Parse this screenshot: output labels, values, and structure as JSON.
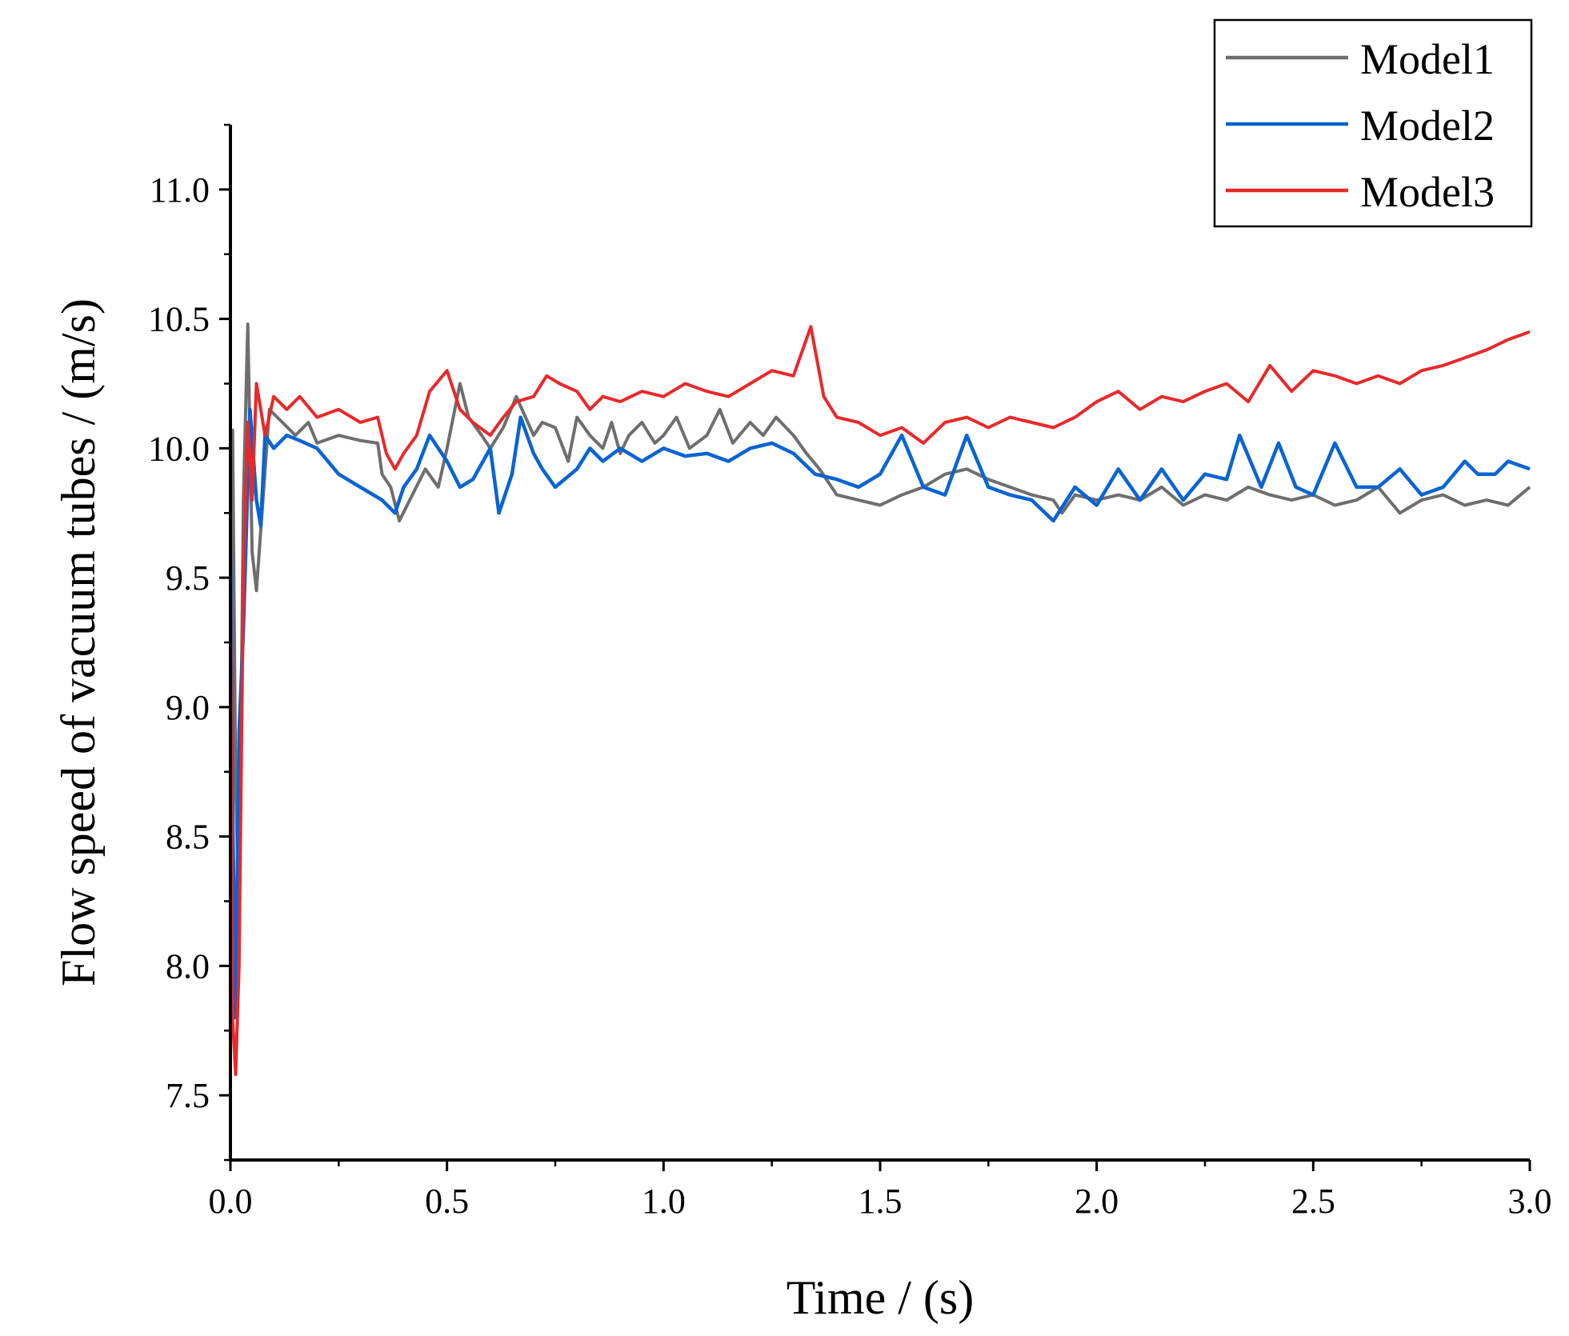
{
  "chart_data": {
    "type": "line",
    "title": "",
    "xlabel": "Time / (s)",
    "ylabel": "Flow speed of vacuum tubes / (m/s)",
    "xlim": [
      0.0,
      3.0
    ],
    "ylim": [
      7.25,
      11.25
    ],
    "xticks": [
      0.0,
      0.5,
      1.0,
      1.5,
      2.0,
      2.5,
      3.0
    ],
    "xtick_labels": [
      "0.0",
      "0.5",
      "1.0",
      "1.5",
      "2.0",
      "2.5",
      "3.0"
    ],
    "yticks": [
      7.5,
      8.0,
      8.5,
      9.0,
      9.5,
      10.0,
      10.5,
      11.0
    ],
    "ytick_labels": [
      "7.5",
      "8.0",
      "8.5",
      "9.0",
      "9.5",
      "10.0",
      "10.5",
      "11.0"
    ],
    "grid": false,
    "legend_position": "top-right",
    "series": [
      {
        "name": "Model1",
        "color": "#6e6e6e",
        "points": [
          [
            0.0,
            9.6
          ],
          [
            0.005,
            10.07
          ],
          [
            0.012,
            8.7
          ],
          [
            0.02,
            8.2
          ],
          [
            0.03,
            9.8
          ],
          [
            0.04,
            10.48
          ],
          [
            0.05,
            9.6
          ],
          [
            0.06,
            9.45
          ],
          [
            0.075,
            9.8
          ],
          [
            0.09,
            10.15
          ],
          [
            0.12,
            10.1
          ],
          [
            0.15,
            10.05
          ],
          [
            0.18,
            10.1
          ],
          [
            0.2,
            10.02
          ],
          [
            0.25,
            10.05
          ],
          [
            0.3,
            10.03
          ],
          [
            0.34,
            10.02
          ],
          [
            0.35,
            9.9
          ],
          [
            0.37,
            9.85
          ],
          [
            0.39,
            9.72
          ],
          [
            0.42,
            9.82
          ],
          [
            0.45,
            9.92
          ],
          [
            0.48,
            9.85
          ],
          [
            0.5,
            10.0
          ],
          [
            0.53,
            10.25
          ],
          [
            0.55,
            10.12
          ],
          [
            0.58,
            10.05
          ],
          [
            0.6,
            10.0
          ],
          [
            0.63,
            10.08
          ],
          [
            0.66,
            10.2
          ],
          [
            0.7,
            10.05
          ],
          [
            0.72,
            10.1
          ],
          [
            0.75,
            10.08
          ],
          [
            0.78,
            9.95
          ],
          [
            0.8,
            10.12
          ],
          [
            0.83,
            10.05
          ],
          [
            0.86,
            10.0
          ],
          [
            0.88,
            10.1
          ],
          [
            0.9,
            9.98
          ],
          [
            0.92,
            10.05
          ],
          [
            0.95,
            10.1
          ],
          [
            0.98,
            10.02
          ],
          [
            1.0,
            10.05
          ],
          [
            1.03,
            10.12
          ],
          [
            1.06,
            10.0
          ],
          [
            1.1,
            10.05
          ],
          [
            1.13,
            10.15
          ],
          [
            1.16,
            10.02
          ],
          [
            1.2,
            10.1
          ],
          [
            1.23,
            10.05
          ],
          [
            1.26,
            10.12
          ],
          [
            1.3,
            10.05
          ],
          [
            1.33,
            9.98
          ],
          [
            1.36,
            9.92
          ],
          [
            1.4,
            9.82
          ],
          [
            1.45,
            9.8
          ],
          [
            1.5,
            9.78
          ],
          [
            1.55,
            9.82
          ],
          [
            1.6,
            9.85
          ],
          [
            1.65,
            9.9
          ],
          [
            1.7,
            9.92
          ],
          [
            1.75,
            9.88
          ],
          [
            1.8,
            9.85
          ],
          [
            1.85,
            9.82
          ],
          [
            1.9,
            9.8
          ],
          [
            1.92,
            9.75
          ],
          [
            1.95,
            9.82
          ],
          [
            2.0,
            9.8
          ],
          [
            2.05,
            9.82
          ],
          [
            2.1,
            9.8
          ],
          [
            2.15,
            9.85
          ],
          [
            2.2,
            9.78
          ],
          [
            2.25,
            9.82
          ],
          [
            2.3,
            9.8
          ],
          [
            2.35,
            9.85
          ],
          [
            2.4,
            9.82
          ],
          [
            2.45,
            9.8
          ],
          [
            2.5,
            9.82
          ],
          [
            2.55,
            9.78
          ],
          [
            2.6,
            9.8
          ],
          [
            2.65,
            9.85
          ],
          [
            2.7,
            9.75
          ],
          [
            2.75,
            9.8
          ],
          [
            2.8,
            9.82
          ],
          [
            2.85,
            9.78
          ],
          [
            2.9,
            9.8
          ],
          [
            2.95,
            9.78
          ],
          [
            3.0,
            9.85
          ]
        ]
      },
      {
        "name": "Model2",
        "color": "#0a64d2",
        "points": [
          [
            0.0,
            9.6
          ],
          [
            0.005,
            8.6
          ],
          [
            0.012,
            7.8
          ],
          [
            0.02,
            8.9
          ],
          [
            0.03,
            9.3
          ],
          [
            0.045,
            10.15
          ],
          [
            0.06,
            9.8
          ],
          [
            0.07,
            9.7
          ],
          [
            0.08,
            10.05
          ],
          [
            0.1,
            10.0
          ],
          [
            0.13,
            10.05
          ],
          [
            0.16,
            10.03
          ],
          [
            0.2,
            10.0
          ],
          [
            0.25,
            9.9
          ],
          [
            0.3,
            9.85
          ],
          [
            0.35,
            9.8
          ],
          [
            0.38,
            9.75
          ],
          [
            0.4,
            9.85
          ],
          [
            0.43,
            9.92
          ],
          [
            0.46,
            10.05
          ],
          [
            0.5,
            9.95
          ],
          [
            0.53,
            9.85
          ],
          [
            0.56,
            9.88
          ],
          [
            0.6,
            10.0
          ],
          [
            0.62,
            9.75
          ],
          [
            0.65,
            9.9
          ],
          [
            0.67,
            10.12
          ],
          [
            0.7,
            9.98
          ],
          [
            0.72,
            9.92
          ],
          [
            0.75,
            9.85
          ],
          [
            0.8,
            9.92
          ],
          [
            0.83,
            10.0
          ],
          [
            0.86,
            9.95
          ],
          [
            0.9,
            10.0
          ],
          [
            0.95,
            9.95
          ],
          [
            1.0,
            10.0
          ],
          [
            1.05,
            9.97
          ],
          [
            1.1,
            9.98
          ],
          [
            1.15,
            9.95
          ],
          [
            1.2,
            10.0
          ],
          [
            1.25,
            10.02
          ],
          [
            1.3,
            9.98
          ],
          [
            1.35,
            9.9
          ],
          [
            1.4,
            9.88
          ],
          [
            1.45,
            9.85
          ],
          [
            1.5,
            9.9
          ],
          [
            1.55,
            10.05
          ],
          [
            1.6,
            9.85
          ],
          [
            1.65,
            9.82
          ],
          [
            1.7,
            10.05
          ],
          [
            1.75,
            9.85
          ],
          [
            1.8,
            9.82
          ],
          [
            1.85,
            9.8
          ],
          [
            1.9,
            9.72
          ],
          [
            1.95,
            9.85
          ],
          [
            2.0,
            9.78
          ],
          [
            2.05,
            9.92
          ],
          [
            2.1,
            9.8
          ],
          [
            2.15,
            9.92
          ],
          [
            2.2,
            9.8
          ],
          [
            2.25,
            9.9
          ],
          [
            2.3,
            9.88
          ],
          [
            2.33,
            10.05
          ],
          [
            2.38,
            9.85
          ],
          [
            2.42,
            10.02
          ],
          [
            2.46,
            9.85
          ],
          [
            2.5,
            9.82
          ],
          [
            2.55,
            10.02
          ],
          [
            2.6,
            9.85
          ],
          [
            2.65,
            9.85
          ],
          [
            2.7,
            9.92
          ],
          [
            2.75,
            9.82
          ],
          [
            2.8,
            9.85
          ],
          [
            2.85,
            9.95
          ],
          [
            2.88,
            9.9
          ],
          [
            2.92,
            9.9
          ],
          [
            2.95,
            9.95
          ],
          [
            3.0,
            9.92
          ]
        ]
      },
      {
        "name": "Model3",
        "color": "#e8292b",
        "points": [
          [
            0.0,
            9.5
          ],
          [
            0.005,
            7.8
          ],
          [
            0.012,
            7.58
          ],
          [
            0.02,
            8.0
          ],
          [
            0.03,
            9.5
          ],
          [
            0.04,
            10.1
          ],
          [
            0.05,
            9.8
          ],
          [
            0.06,
            10.25
          ],
          [
            0.08,
            10.05
          ],
          [
            0.1,
            10.2
          ],
          [
            0.13,
            10.15
          ],
          [
            0.16,
            10.2
          ],
          [
            0.2,
            10.12
          ],
          [
            0.25,
            10.15
          ],
          [
            0.3,
            10.1
          ],
          [
            0.34,
            10.12
          ],
          [
            0.36,
            9.98
          ],
          [
            0.38,
            9.92
          ],
          [
            0.4,
            9.98
          ],
          [
            0.43,
            10.05
          ],
          [
            0.46,
            10.22
          ],
          [
            0.5,
            10.3
          ],
          [
            0.53,
            10.15
          ],
          [
            0.56,
            10.1
          ],
          [
            0.6,
            10.05
          ],
          [
            0.63,
            10.12
          ],
          [
            0.66,
            10.18
          ],
          [
            0.7,
            10.2
          ],
          [
            0.73,
            10.28
          ],
          [
            0.76,
            10.25
          ],
          [
            0.8,
            10.22
          ],
          [
            0.83,
            10.15
          ],
          [
            0.86,
            10.2
          ],
          [
            0.9,
            10.18
          ],
          [
            0.95,
            10.22
          ],
          [
            1.0,
            10.2
          ],
          [
            1.05,
            10.25
          ],
          [
            1.1,
            10.22
          ],
          [
            1.15,
            10.2
          ],
          [
            1.2,
            10.25
          ],
          [
            1.25,
            10.3
          ],
          [
            1.3,
            10.28
          ],
          [
            1.34,
            10.47
          ],
          [
            1.37,
            10.2
          ],
          [
            1.4,
            10.12
          ],
          [
            1.45,
            10.1
          ],
          [
            1.5,
            10.05
          ],
          [
            1.55,
            10.08
          ],
          [
            1.6,
            10.02
          ],
          [
            1.65,
            10.1
          ],
          [
            1.7,
            10.12
          ],
          [
            1.75,
            10.08
          ],
          [
            1.8,
            10.12
          ],
          [
            1.85,
            10.1
          ],
          [
            1.9,
            10.08
          ],
          [
            1.95,
            10.12
          ],
          [
            2.0,
            10.18
          ],
          [
            2.05,
            10.22
          ],
          [
            2.1,
            10.15
          ],
          [
            2.15,
            10.2
          ],
          [
            2.2,
            10.18
          ],
          [
            2.25,
            10.22
          ],
          [
            2.3,
            10.25
          ],
          [
            2.35,
            10.18
          ],
          [
            2.4,
            10.32
          ],
          [
            2.45,
            10.22
          ],
          [
            2.5,
            10.3
          ],
          [
            2.55,
            10.28
          ],
          [
            2.6,
            10.25
          ],
          [
            2.65,
            10.28
          ],
          [
            2.7,
            10.25
          ],
          [
            2.75,
            10.3
          ],
          [
            2.8,
            10.32
          ],
          [
            2.85,
            10.35
          ],
          [
            2.9,
            10.38
          ],
          [
            2.95,
            10.42
          ],
          [
            3.0,
            10.45
          ]
        ]
      }
    ]
  }
}
